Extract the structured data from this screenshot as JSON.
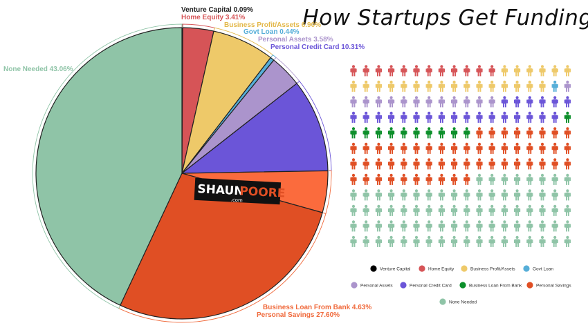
{
  "chart_data": {
    "type": "pie",
    "title": "How Startups Get Funding",
    "start_angle_deg": -90,
    "direction": "clockwise",
    "slices": [
      {
        "name": "Venture Capital",
        "value": 0.09,
        "label": "Venture Capital 0.09%",
        "color": "#000000"
      },
      {
        "name": "Home Equity",
        "value": 3.41,
        "label": "Home Equity 3.41%",
        "color": "#d65457"
      },
      {
        "name": "Business Profit/Assets",
        "value": 6.9,
        "label": "Business Profit/Assets 6.90%",
        "color": "#eec969"
      },
      {
        "name": "Govt Loan",
        "value": 0.44,
        "label": "Govt Loan 0.44%",
        "color": "#56aed8"
      },
      {
        "name": "Personal Assets",
        "value": 3.58,
        "label": "Personal Assets 3.58%",
        "color": "#ab94cc"
      },
      {
        "name": "Personal Credit Card",
        "value": 10.31,
        "label": "Personal Credit Card 10.31%",
        "color": "#6b55d8"
      },
      {
        "name": "Business Loan From Bank",
        "value": 4.63,
        "label": "Business Loan From Bank 4.63%",
        "color": "#fb6b3d"
      },
      {
        "name": "Personal Savings",
        "value": 27.6,
        "label": "Personal Savings 27.60%",
        "color": "#e04f24"
      },
      {
        "name": "None Needed",
        "value": 43.06,
        "label": "None Needed 43.06%",
        "color": "#8fc4a7"
      }
    ],
    "label_colors": {
      "Venture Capital": "#222222",
      "Home Equity": "#d65457",
      "Business Profit/Assets": "#e3b84a",
      "Govt Loan": "#56aed8",
      "Personal Assets": "#ab94cc",
      "Personal Credit Card": "#6b55d8",
      "Business Loan From Bank": "#f06a3c",
      "Personal Savings": "#f06a3c",
      "None Needed": "#8fc4a7"
    },
    "icon_grid": {
      "rows": 12,
      "cols": 18,
      "icon": "person-icon",
      "sequence": [
        {
          "name": "Home Equity",
          "count": 12,
          "color": "#d65457"
        },
        {
          "name": "Business Profit/Assets",
          "count": 22,
          "color": "#eec969"
        },
        {
          "name": "Govt Loan",
          "count": 1,
          "color": "#56aed8"
        },
        {
          "name": "Personal Assets",
          "count": 13,
          "color": "#ab94cc"
        },
        {
          "name": "Personal Credit Card",
          "count": 23,
          "color": "#6b55d8"
        },
        {
          "name": "Business Loan From Bank",
          "count": 11,
          "color": "#0c8f2a"
        },
        {
          "name": "Personal Savings",
          "count": 54,
          "color": "#e04f24"
        },
        {
          "name": "None Needed",
          "count": 80,
          "color": "#8fc4a7"
        }
      ]
    },
    "legend": {
      "placement": "bottom-right",
      "items": [
        {
          "name": "Venture Capital",
          "color": "#000000"
        },
        {
          "name": "Home Equity",
          "color": "#d65457"
        },
        {
          "name": "Business Profit/Assets",
          "color": "#eec969"
        },
        {
          "name": "Govt Loan",
          "color": "#56aed8"
        },
        {
          "name": "Personal Assets",
          "color": "#ab94cc"
        },
        {
          "name": "Personal Credit Card",
          "color": "#6b55d8"
        },
        {
          "name": "Business Loan From Bank",
          "color": "#0c8f2a"
        },
        {
          "name": "Personal Savings",
          "color": "#e04f24"
        },
        {
          "name": "None Needed",
          "color": "#8fc4a7"
        }
      ]
    }
  },
  "watermark": {
    "text_left": "SHAUN",
    "text_right": "POORE",
    "sub": ".com"
  }
}
